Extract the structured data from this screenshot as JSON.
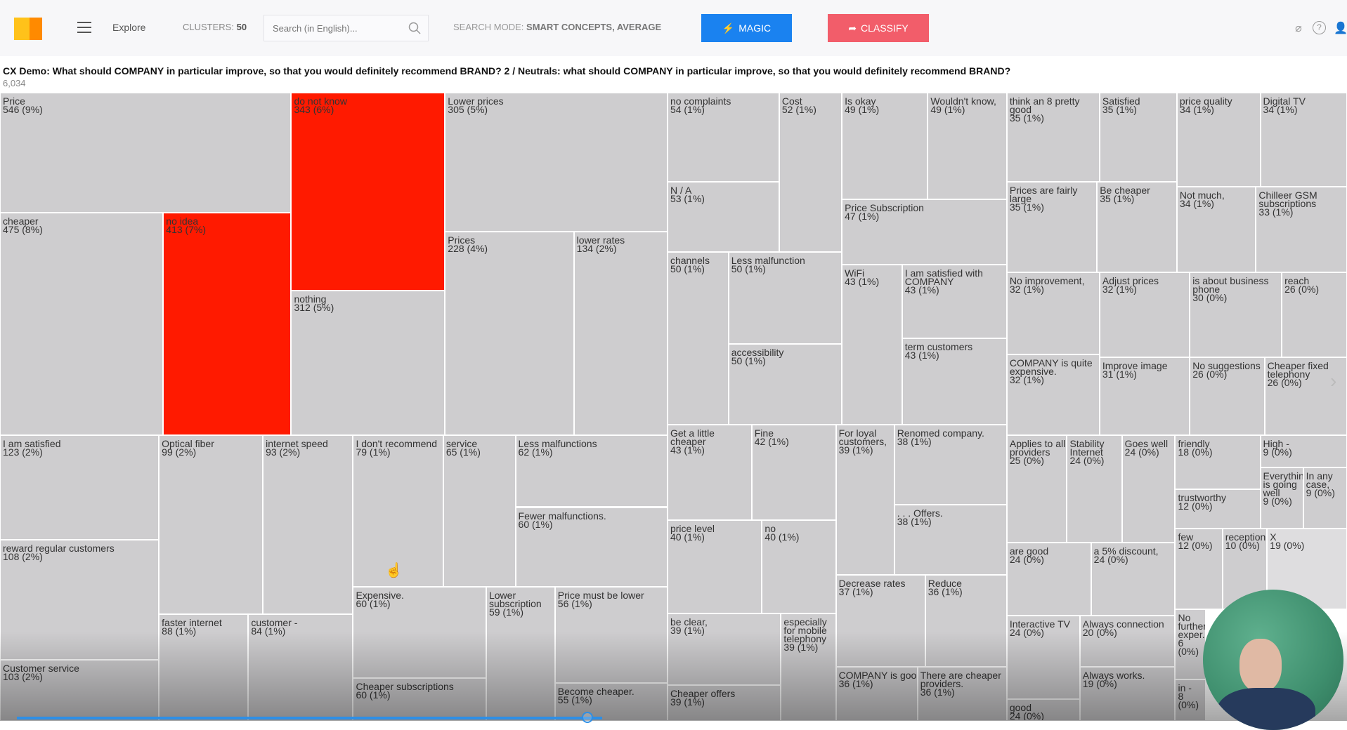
{
  "header": {
    "nav_explore": "Explore",
    "clusters_label": "CLUSTERS:",
    "clusters_value": "50",
    "search_placeholder": "Search (in English)...",
    "search_mode_label": "SEARCH MODE:",
    "search_mode_value": "SMART CONCEPTS, AVERAGE",
    "magic_label": "MAGIC",
    "classify_label": "CLASSIFY",
    "icons": [
      "tag-icon",
      "help-icon",
      "user-icon"
    ]
  },
  "question": {
    "title": "CX Demo: What should COMPANY in particular improve, so that you would definitely recommend BRAND? 2 / Neutrals: what should COMPANY in particular improve, so that you would definitely recommend BRAND?",
    "total": "6,034"
  },
  "colors": {
    "tile": "#cecdcf",
    "highlight": "#ff1a00",
    "magic": "#1a82f0",
    "classify": "#f25d6a"
  },
  "tiles": [
    {
      "label": "Price",
      "value": "546 (9%)"
    },
    {
      "label": "do not know",
      "value": "343 (6%)",
      "highlight": true
    },
    {
      "label": "Lower prices",
      "value": "305 (5%)"
    },
    {
      "label": "cheaper",
      "value": "475 (8%)"
    },
    {
      "label": "no idea",
      "value": "413 (7%)",
      "highlight": true
    },
    {
      "label": "nothing",
      "value": "312 (5%)"
    },
    {
      "label": "Prices",
      "value": "228 (4%)"
    },
    {
      "label": "lower rates",
      "value": "134 (2%)"
    },
    {
      "label": "no complaints",
      "value": "54 (1%)"
    },
    {
      "label": "N / A",
      "value": "53 (1%)"
    },
    {
      "label": "Cost",
      "value": "52 (1%)"
    },
    {
      "label": "Is okay",
      "value": "49 (1%)"
    },
    {
      "label": "Wouldn't know,",
      "value": "49 (1%)"
    },
    {
      "label": "Price Subscription",
      "value": "47 (1%)"
    },
    {
      "label": "channels",
      "value": "50 (1%)"
    },
    {
      "label": "Less malfunction",
      "value": "50 (1%)"
    },
    {
      "label": "accessibility",
      "value": "50 (1%)"
    },
    {
      "label": "WiFi",
      "value": "43 (1%)"
    },
    {
      "label": "I am satisfied with COMPANY",
      "value": "43 (1%)"
    },
    {
      "label": "term customers",
      "value": "43 (1%)"
    },
    {
      "label": "think an 8 pretty good",
      "value": "35 (1%)"
    },
    {
      "label": "Satisfied",
      "value": "35 (1%)"
    },
    {
      "label": "price quality",
      "value": "34 (1%)"
    },
    {
      "label": "Digital TV",
      "value": "34 (1%)"
    },
    {
      "label": "Prices are fairly large",
      "value": "35 (1%)"
    },
    {
      "label": "Be cheaper",
      "value": "35 (1%)"
    },
    {
      "label": "Not much,",
      "value": "34 (1%)"
    },
    {
      "label": "Chilleer GSM subscriptions",
      "value": "33 (1%)"
    },
    {
      "label": "No improvement,",
      "value": "32 (1%)"
    },
    {
      "label": "Adjust prices",
      "value": "32 (1%)"
    },
    {
      "label": "is about business phone",
      "value": "30 (0%)"
    },
    {
      "label": "reach",
      "value": "26 (0%)"
    },
    {
      "label": "COMPANY is quite expensive.",
      "value": "32 (1%)"
    },
    {
      "label": "Improve image",
      "value": "31 (1%)"
    },
    {
      "label": "No suggestions",
      "value": "26 (0%)"
    },
    {
      "label": "Cheaper fixed telephony",
      "value": "26 (0%)"
    },
    {
      "label": "I am satisfied",
      "value": "123 (2%)"
    },
    {
      "label": "reward regular customers",
      "value": "108 (2%)"
    },
    {
      "label": "Customer service",
      "value": "103 (2%)"
    },
    {
      "label": "Optical fiber",
      "value": "99 (2%)"
    },
    {
      "label": "internet speed",
      "value": "93 (2%)"
    },
    {
      "label": "faster internet",
      "value": "88 (1%)"
    },
    {
      "label": "customer -",
      "value": "84 (1%)"
    },
    {
      "label": "I don't recommend",
      "value": "79 (1%)"
    },
    {
      "label": "service",
      "value": "65 (1%)"
    },
    {
      "label": "Less malfunctions",
      "value": "62 (1%)"
    },
    {
      "label": "Fewer malfunctions.",
      "value": "60 (1%)"
    },
    {
      "label": "Expensive.",
      "value": "60 (1%)"
    },
    {
      "label": "Cheaper subscriptions",
      "value": "60 (1%)"
    },
    {
      "label": "Lower subscription",
      "value": "59 (1%)"
    },
    {
      "label": "Price must be lower",
      "value": "56 (1%)"
    },
    {
      "label": "Become cheaper.",
      "value": "55 (1%)"
    },
    {
      "label": "Get a little cheaper",
      "value": "43 (1%)"
    },
    {
      "label": "Fine",
      "value": "42 (1%)"
    },
    {
      "label": "price level",
      "value": "40 (1%)"
    },
    {
      "label": "no",
      "value": "40 (1%)"
    },
    {
      "label": "be clear,",
      "value": "39 (1%)"
    },
    {
      "label": "Cheaper offers",
      "value": "39 (1%)"
    },
    {
      "label": "especially for mobile telephony",
      "value": "39 (1%)"
    },
    {
      "label": "For loyal customers,",
      "value": "39 (1%)"
    },
    {
      "label": "Renomed company.",
      "value": "38 (1%)"
    },
    {
      "label": ". . . Offers.",
      "value": "38 (1%)"
    },
    {
      "label": "Decrease rates",
      "value": "37 (1%)"
    },
    {
      "label": "Reduce",
      "value": "36 (1%)"
    },
    {
      "label": "COMPANY is goo",
      "value": "36 (1%)"
    },
    {
      "label": "There are cheaper providers.",
      "value": "36 (1%)"
    },
    {
      "label": "Applies to all providers",
      "value": "25 (0%)"
    },
    {
      "label": "Stability Internet",
      "value": "24 (0%)"
    },
    {
      "label": "Goes well",
      "value": "24 (0%)"
    },
    {
      "label": "are good",
      "value": "24 (0%)"
    },
    {
      "label": "a 5% discount,",
      "value": "24 (0%)"
    },
    {
      "label": "Interactive TV",
      "value": "24 (0%)"
    },
    {
      "label": "good",
      "value": "24 (0%)"
    },
    {
      "label": "Always connection",
      "value": "20 (0%)"
    },
    {
      "label": "Always works.",
      "value": "19 (0%)"
    },
    {
      "label": "friendly",
      "value": "18 (0%)"
    },
    {
      "label": "trustworthy",
      "value": "12 (0%)"
    },
    {
      "label": "High -",
      "value": "9 (0%)"
    },
    {
      "label": "Everything is going well",
      "value": "9 (0%)"
    },
    {
      "label": "In any case,",
      "value": "9 (0%)"
    },
    {
      "label": "few",
      "value": "12 (0%)"
    },
    {
      "label": "reception",
      "value": "10 (0%)"
    },
    {
      "label": "X",
      "value": "19 (0%)",
      "light": true
    },
    {
      "label": "No further exper...",
      "value": "6 (0%)"
    },
    {
      "label": "in -",
      "value": "8 (0%)"
    }
  ],
  "video": {
    "progress_percent": 44
  }
}
